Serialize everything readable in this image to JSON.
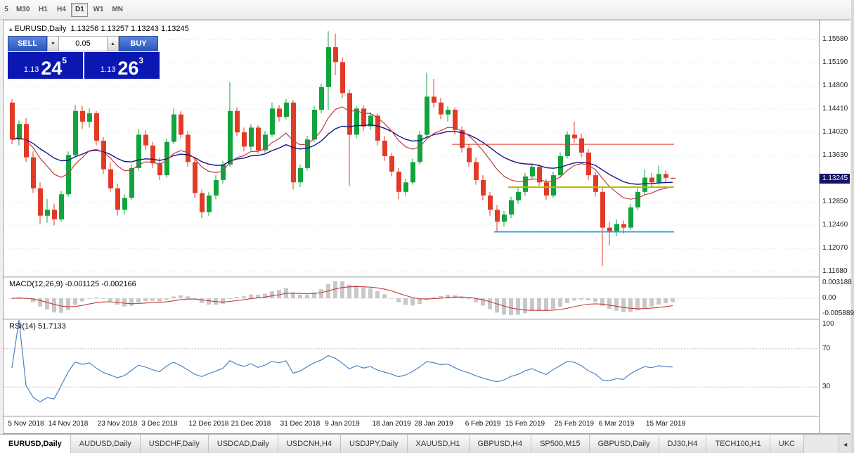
{
  "toolbar": {
    "timeframes": [
      {
        "label": "5",
        "active": false
      },
      {
        "label": "M30",
        "active": false
      },
      {
        "label": "H1",
        "active": false
      },
      {
        "label": "H4",
        "active": false
      },
      {
        "label": "D1",
        "active": true
      },
      {
        "label": "W1",
        "active": false
      },
      {
        "label": "MN",
        "active": false
      }
    ]
  },
  "chart": {
    "collapse_icon": "▴",
    "symbol_label": "EURUSD,Daily",
    "ohlc": "1.13256 1.13257 1.13243 1.13245"
  },
  "trade_panel": {
    "sell_label": "SELL",
    "buy_label": "BUY",
    "volume": "0.05",
    "down_icon": "▼",
    "up_icon": "▲",
    "sell_price": {
      "prefix": "1.13",
      "big": "24",
      "sup": "5"
    },
    "buy_price": {
      "prefix": "1.13",
      "big": "26",
      "sup": "3"
    }
  },
  "indicators": {
    "macd_label": "MACD(12,26,9) -0.001125 -0.002166",
    "macd_axis": [
      "0.003188",
      "0.00",
      "-0.005889"
    ],
    "rsi_label": "RSI(14) 51.7133",
    "rsi_axis": [
      "100",
      "70",
      "30"
    ]
  },
  "price_axis": {
    "labels": [
      "1.15580",
      "1.15190",
      "1.14800",
      "1.14410",
      "1.14020",
      "1.13630",
      "1.12850",
      "1.12460",
      "1.12070",
      "1.11680"
    ],
    "current": "1.13245"
  },
  "date_axis": [
    {
      "label": "5 Nov 2018",
      "index": 2
    },
    {
      "label": "14 Nov 2018",
      "index": 8
    },
    {
      "label": "23 Nov 2018",
      "index": 15
    },
    {
      "label": "3 Dec 2018",
      "index": 21
    },
    {
      "label": "12 Dec 2018",
      "index": 28
    },
    {
      "label": "21 Dec 2018",
      "index": 34
    },
    {
      "label": "31 Dec 2018",
      "index": 41
    },
    {
      "label": "9 Jan 2019",
      "index": 47
    },
    {
      "label": "18 Jan 2019",
      "index": 54
    },
    {
      "label": "28 Jan 2019",
      "index": 60
    },
    {
      "label": "6 Feb 2019",
      "index": 67
    },
    {
      "label": "15 Feb 2019",
      "index": 73
    },
    {
      "label": "25 Feb 2019",
      "index": 80
    },
    {
      "label": "6 Mar 2019",
      "index": 86
    },
    {
      "label": "15 Mar 2019",
      "index": 93
    }
  ],
  "tabs": {
    "scroll_left_icon": "◄",
    "items": [
      {
        "label": "EURUSD,Daily",
        "active": true
      },
      {
        "label": "AUDUSD,Daily",
        "active": false
      },
      {
        "label": "USDCHF,Daily",
        "active": false
      },
      {
        "label": "USDCAD,Daily",
        "active": false
      },
      {
        "label": "USDCNH,H4",
        "active": false
      },
      {
        "label": "USDJPY,Daily",
        "active": false
      },
      {
        "label": "XAUUSD,H1",
        "active": false
      },
      {
        "label": "GBPUSD,H4",
        "active": false
      },
      {
        "label": "SP500,M15",
        "active": false
      },
      {
        "label": "GBPUSD,Daily",
        "active": false
      },
      {
        "label": "DJ30,H4",
        "active": false
      },
      {
        "label": "TECH100,H1",
        "active": false
      },
      {
        "label": "UKC",
        "active": false
      }
    ]
  },
  "colors": {
    "bull": "#10a43d",
    "bear": "#e33a27",
    "ema_fast": "#c33b3b",
    "ema_slow": "#14148c",
    "macd_hist": "#c8c8c8",
    "macd_signal": "#c33b3b",
    "rsi": "#4c83c4",
    "badge_bg": "#14146a",
    "price_box_bg": "#0a17b2",
    "line_red": "#e03428",
    "line_yellow": "#b9bd00",
    "line_blue": "#3da0e6"
  },
  "chart_data": {
    "type": "candlestick",
    "symbol": "EURUSD",
    "timeframe": "Daily",
    "price_range": [
      1.116,
      1.159
    ],
    "overlays": {
      "ema_fast_period": 12,
      "ema_slow_period": 26
    },
    "sub_indicators": {
      "macd": {
        "fast": 12,
        "slow": 26,
        "signal": 9
      },
      "rsi": {
        "period": 14
      }
    },
    "horizontal_lines": [
      {
        "name": "resistance-line-red",
        "price": 1.1382,
        "color": "#e03428",
        "from_index": 63,
        "width": 1
      },
      {
        "name": "pivot-line-yellow",
        "price": 1.131,
        "color": "#b9bd00",
        "from_index": 71,
        "width": 2
      },
      {
        "name": "support-line-blue",
        "price": 1.1235,
        "color": "#3da0e6",
        "from_index": 69,
        "width": 2
      }
    ],
    "candles": [
      [
        1.1452,
        1.1458,
        1.1382,
        1.139
      ],
      [
        1.139,
        1.1422,
        1.138,
        1.1416
      ],
      [
        1.1416,
        1.1426,
        1.1352,
        1.136
      ],
      [
        1.136,
        1.137,
        1.13,
        1.1308
      ],
      [
        1.1308,
        1.1318,
        1.1248,
        1.1262
      ],
      [
        1.1262,
        1.129,
        1.125,
        1.1272
      ],
      [
        1.1272,
        1.1282,
        1.1246,
        1.1256
      ],
      [
        1.1256,
        1.1304,
        1.1252,
        1.1298
      ],
      [
        1.1298,
        1.137,
        1.1294,
        1.1364
      ],
      [
        1.1364,
        1.1448,
        1.136,
        1.1438
      ],
      [
        1.1438,
        1.1446,
        1.1408,
        1.142
      ],
      [
        1.142,
        1.1442,
        1.141,
        1.1434
      ],
      [
        1.1434,
        1.1438,
        1.138,
        1.1388
      ],
      [
        1.1388,
        1.1394,
        1.1332,
        1.134
      ],
      [
        1.134,
        1.1352,
        1.1302,
        1.1308
      ],
      [
        1.1308,
        1.1316,
        1.1262,
        1.1272
      ],
      [
        1.1272,
        1.1298,
        1.1264,
        1.1292
      ],
      [
        1.1292,
        1.1348,
        1.1288,
        1.1342
      ],
      [
        1.1342,
        1.1408,
        1.1338,
        1.1398
      ],
      [
        1.1398,
        1.1406,
        1.1372,
        1.138
      ],
      [
        1.138,
        1.1386,
        1.1342,
        1.135
      ],
      [
        1.135,
        1.136,
        1.1322,
        1.133
      ],
      [
        1.133,
        1.1392,
        1.1326,
        1.1386
      ],
      [
        1.1386,
        1.1442,
        1.1382,
        1.1432
      ],
      [
        1.1432,
        1.1438,
        1.1392,
        1.1398
      ],
      [
        1.1398,
        1.1404,
        1.1344,
        1.1352
      ],
      [
        1.1352,
        1.1358,
        1.1292,
        1.13
      ],
      [
        1.13,
        1.1306,
        1.1258,
        1.1268
      ],
      [
        1.1268,
        1.1302,
        1.1262,
        1.1296
      ],
      [
        1.1296,
        1.133,
        1.129,
        1.1322
      ],
      [
        1.1322,
        1.1354,
        1.1316,
        1.1348
      ],
      [
        1.1348,
        1.1486,
        1.1344,
        1.1438
      ],
      [
        1.1438,
        1.1444,
        1.1396,
        1.1402
      ],
      [
        1.1402,
        1.141,
        1.137,
        1.1378
      ],
      [
        1.1378,
        1.1416,
        1.1372,
        1.141
      ],
      [
        1.141,
        1.1414,
        1.1366,
        1.1372
      ],
      [
        1.1372,
        1.1404,
        1.1368,
        1.1398
      ],
      [
        1.1398,
        1.1452,
        1.1394,
        1.1442
      ],
      [
        1.1442,
        1.1448,
        1.142,
        1.1428
      ],
      [
        1.1428,
        1.1458,
        1.1424,
        1.1452
      ],
      [
        1.1452,
        1.1456,
        1.1306,
        1.1318
      ],
      [
        1.1318,
        1.1348,
        1.131,
        1.1342
      ],
      [
        1.1342,
        1.1396,
        1.1338,
        1.139
      ],
      [
        1.139,
        1.1446,
        1.1386,
        1.144
      ],
      [
        1.144,
        1.1484,
        1.1434,
        1.1478
      ],
      [
        1.1478,
        1.1572,
        1.144,
        1.1545
      ],
      [
        1.1545,
        1.1568,
        1.1498,
        1.152
      ],
      [
        1.152,
        1.1528,
        1.146,
        1.1468
      ],
      [
        1.1468,
        1.1474,
        1.1312,
        1.1398
      ],
      [
        1.1398,
        1.1446,
        1.1392,
        1.1442
      ],
      [
        1.1442,
        1.1448,
        1.1404,
        1.1412
      ],
      [
        1.1412,
        1.1436,
        1.1406,
        1.143
      ],
      [
        1.143,
        1.1434,
        1.138,
        1.1388
      ],
      [
        1.1388,
        1.1396,
        1.1354,
        1.1362
      ],
      [
        1.1362,
        1.1368,
        1.1328,
        1.1336
      ],
      [
        1.1336,
        1.1342,
        1.129,
        1.1302
      ],
      [
        1.1302,
        1.1324,
        1.1296,
        1.1318
      ],
      [
        1.1318,
        1.1358,
        1.1314,
        1.1352
      ],
      [
        1.1352,
        1.1404,
        1.1348,
        1.1398
      ],
      [
        1.1398,
        1.1502,
        1.1394,
        1.1462
      ],
      [
        1.1462,
        1.1492,
        1.1444,
        1.1452
      ],
      [
        1.1452,
        1.146,
        1.1424,
        1.1432
      ],
      [
        1.1432,
        1.1446,
        1.142,
        1.144
      ],
      [
        1.144,
        1.1444,
        1.1398,
        1.1406
      ],
      [
        1.1406,
        1.1412,
        1.1368,
        1.1376
      ],
      [
        1.1376,
        1.1382,
        1.1344,
        1.1352
      ],
      [
        1.1352,
        1.136,
        1.1314,
        1.1322
      ],
      [
        1.1322,
        1.133,
        1.1288,
        1.1296
      ],
      [
        1.1296,
        1.1302,
        1.1262,
        1.1272
      ],
      [
        1.1272,
        1.128,
        1.1236,
        1.1252
      ],
      [
        1.1252,
        1.127,
        1.1244,
        1.1264
      ],
      [
        1.1264,
        1.1294,
        1.1258,
        1.1288
      ],
      [
        1.1288,
        1.131,
        1.1282,
        1.1302
      ],
      [
        1.1302,
        1.1334,
        1.1296,
        1.1328
      ],
      [
        1.1328,
        1.135,
        1.1322,
        1.1344
      ],
      [
        1.1344,
        1.1348,
        1.1312,
        1.1318
      ],
      [
        1.1318,
        1.1324,
        1.1288,
        1.1296
      ],
      [
        1.1296,
        1.1336,
        1.1292,
        1.133
      ],
      [
        1.133,
        1.1368,
        1.1326,
        1.1362
      ],
      [
        1.1362,
        1.1404,
        1.1358,
        1.1398
      ],
      [
        1.1398,
        1.142,
        1.1384,
        1.1392
      ],
      [
        1.1392,
        1.14,
        1.136,
        1.1368
      ],
      [
        1.1368,
        1.1374,
        1.1322,
        1.133
      ],
      [
        1.133,
        1.1336,
        1.1294,
        1.1302
      ],
      [
        1.1302,
        1.131,
        1.1178,
        1.1242
      ],
      [
        1.1242,
        1.1252,
        1.1212,
        1.1236
      ],
      [
        1.1236,
        1.1256,
        1.1228,
        1.1248
      ],
      [
        1.1248,
        1.1254,
        1.1232,
        1.1242
      ],
      [
        1.1242,
        1.1282,
        1.1238,
        1.1276
      ],
      [
        1.1276,
        1.1308,
        1.1272,
        1.1302
      ],
      [
        1.1302,
        1.134,
        1.1298,
        1.1326
      ],
      [
        1.1326,
        1.1334,
        1.131,
        1.1318
      ],
      [
        1.1318,
        1.1346,
        1.1314,
        1.1332
      ],
      [
        1.1332,
        1.1338,
        1.1318,
        1.13256
      ],
      [
        1.13256,
        1.13257,
        1.13243,
        1.13245
      ]
    ]
  }
}
